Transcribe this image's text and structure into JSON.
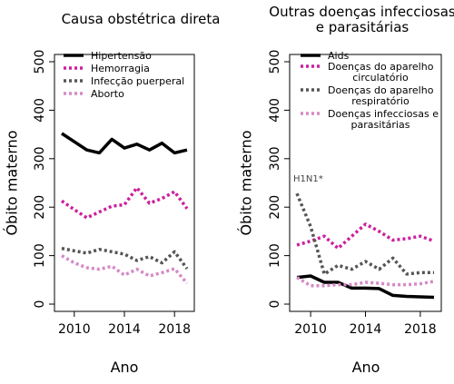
{
  "chart_data": [
    {
      "type": "line",
      "title": [
        "Causa obstétrica direta"
      ],
      "xlabel": "Ano",
      "ylabel": "Óbito materno",
      "ylim": [
        0,
        500
      ],
      "xlim": [
        2009,
        2019
      ],
      "yticks": [
        "0",
        "100",
        "200",
        "300",
        "400",
        "500"
      ],
      "xticks": [
        "2010",
        "2014",
        "2018"
      ],
      "xtick_values": [
        2010,
        2014,
        2018
      ],
      "ytick_values": [
        0,
        100,
        200,
        300,
        400,
        500
      ],
      "legend_position": "top",
      "x": [
        2009,
        2010,
        2011,
        2012,
        2013,
        2014,
        2015,
        2016,
        2017,
        2018,
        2019
      ],
      "series": [
        {
          "name": "Hipertensão",
          "color": "#000000",
          "style": "solid",
          "values": [
            352,
            335,
            318,
            312,
            340,
            322,
            330,
            318,
            332,
            312,
            318
          ]
        },
        {
          "name": "Hemorragia",
          "color": "#cc1f9e",
          "style": "dotted",
          "values": [
            213,
            195,
            178,
            190,
            202,
            205,
            240,
            208,
            218,
            232,
            197
          ]
        },
        {
          "name": "Infecção puerperal",
          "color": "#555555",
          "style": "dotted",
          "values": [
            115,
            110,
            105,
            113,
            108,
            103,
            90,
            98,
            85,
            108,
            73
          ]
        },
        {
          "name": "Aborto",
          "color": "#d48ac6",
          "style": "dotted",
          "values": [
            100,
            85,
            75,
            72,
            78,
            60,
            72,
            58,
            65,
            73,
            43
          ]
        }
      ],
      "annotations": []
    },
    {
      "type": "line",
      "title": [
        "Outras doenças infecciosas",
        "e parasitárias"
      ],
      "xlabel": "Ano",
      "ylabel": "Óbito materno",
      "ylim": [
        0,
        500
      ],
      "xlim": [
        2009,
        2019
      ],
      "yticks": [
        "0",
        "100",
        "200",
        "300",
        "400",
        "500"
      ],
      "xticks": [
        "2010",
        "2014",
        "2018"
      ],
      "xtick_values": [
        2010,
        2014,
        2018
      ],
      "ytick_values": [
        0,
        100,
        200,
        300,
        400,
        500
      ],
      "legend_position": "top",
      "x": [
        2009,
        2010,
        2011,
        2012,
        2013,
        2014,
        2015,
        2016,
        2017,
        2018,
        2019
      ],
      "series": [
        {
          "name": [
            "Aids"
          ],
          "color": "#000000",
          "style": "solid",
          "values": [
            55,
            58,
            45,
            45,
            33,
            33,
            32,
            18,
            16,
            15,
            14
          ]
        },
        {
          "name": [
            "Doenças do aparelho",
            "circulatório"
          ],
          "color": "#cc1f9e",
          "style": "dotted",
          "values": [
            122,
            130,
            140,
            115,
            140,
            165,
            150,
            132,
            135,
            140,
            130
          ]
        },
        {
          "name": [
            "Doenças do aparelho",
            "respiratório"
          ],
          "color": "#555555",
          "style": "dotted",
          "values": [
            228,
            160,
            62,
            80,
            72,
            88,
            72,
            95,
            62,
            65,
            65
          ]
        },
        {
          "name": [
            "Doenças infecciosas e",
            "parasitárias"
          ],
          "color": "#d48ac6",
          "style": "dotted",
          "values": [
            55,
            38,
            38,
            40,
            40,
            45,
            43,
            40,
            40,
            42,
            47
          ]
        }
      ],
      "annotations": [
        {
          "text": "H1N1*",
          "x": 2009,
          "y": 260
        }
      ]
    }
  ]
}
